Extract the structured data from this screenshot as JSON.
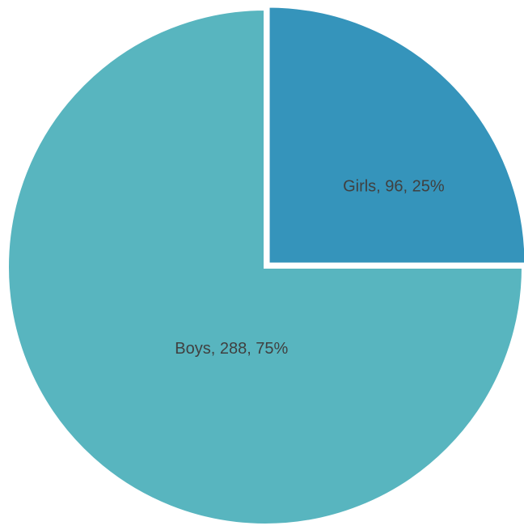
{
  "chart_data": {
    "type": "pie",
    "categories": [
      "Girls",
      "Boys"
    ],
    "values": [
      96,
      288
    ],
    "value_labels": [
      "Girls, 96, 25%",
      "Boys, 288, 75%"
    ],
    "colors": [
      "#3594bb",
      "#58b5bf"
    ]
  }
}
